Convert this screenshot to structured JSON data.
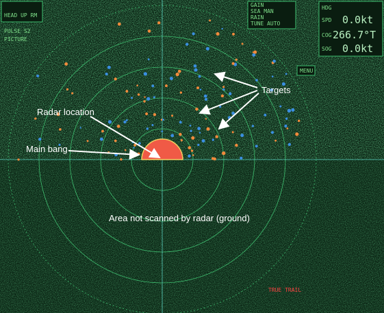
{
  "display": {
    "top_left": [
      "HEAD UP RM",
      "PULSE S2",
      "PICTURE"
    ],
    "top_right": {
      "hdg_label": "HDG",
      "spd_label": "SPD",
      "spd_value": "0.0kt",
      "cog_label": "COG",
      "cog_value": "266.7°T",
      "sog_label": "SOG",
      "sog_value": "0.0kt"
    },
    "controls": [
      "GAIN",
      "SEA MAN",
      "RAIN",
      "TUNE AUTO"
    ],
    "menu": "MENU",
    "trail": "TRUE TRAIL"
  },
  "annotations": {
    "radar_location": "Radar location",
    "main_bang": "Main bang",
    "targets": "Targets",
    "ground": "Area not scanned by radar (ground)"
  }
}
